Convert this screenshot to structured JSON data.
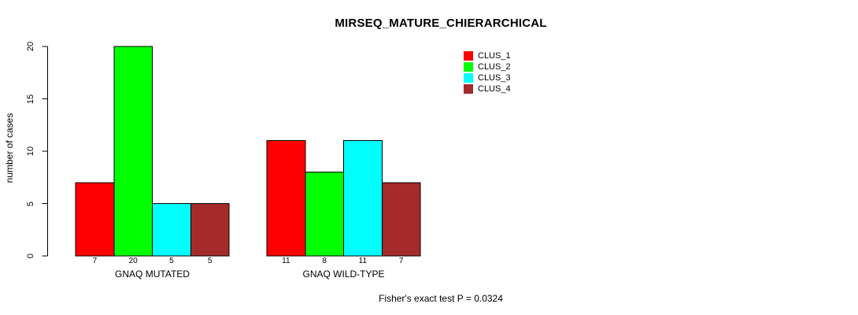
{
  "title": "MIRSEQ_MATURE_CHIERARCHICAL",
  "ylabel": "number of cases",
  "footer": "Fisher's exact test P = 0.0324",
  "colors": {
    "clus_1": "#FF0000",
    "clus_2": "#00FF00",
    "clus_3": "#00FFFF",
    "clus_4": "#A52A2A",
    "axis": "#000000",
    "bar_border": "#000000",
    "background": "#FFFFFF"
  },
  "legend": {
    "items": [
      {
        "label": "CLUS_1",
        "color": "#FF0000"
      },
      {
        "label": "CLUS_2",
        "color": "#00FF00"
      },
      {
        "label": "CLUS_3",
        "color": "#00FFFF"
      },
      {
        "label": "CLUS_4",
        "color": "#A52A2A"
      }
    ],
    "position": "top-right-of-plot"
  },
  "chart_data": {
    "type": "bar",
    "title": "MIRSEQ_MATURE_CHIERARCHICAL",
    "xlabel": "",
    "ylabel": "number of cases",
    "ylim": [
      0,
      20
    ],
    "yticks": [
      0,
      5,
      10,
      15,
      20
    ],
    "grid": false,
    "series": [
      "CLUS_1",
      "CLUS_2",
      "CLUS_3",
      "CLUS_4"
    ],
    "series_colors": [
      "#FF0000",
      "#00FF00",
      "#00FFFF",
      "#A52A2A"
    ],
    "groups": [
      {
        "label": "GNAQ MUTATED",
        "values": [
          7,
          20,
          5,
          5
        ]
      },
      {
        "label": "GNAQ WILD-TYPE",
        "values": [
          11,
          8,
          11,
          7
        ]
      }
    ],
    "bar_value_labels_shown": true,
    "annotation": "Fisher's exact test P = 0.0324"
  }
}
